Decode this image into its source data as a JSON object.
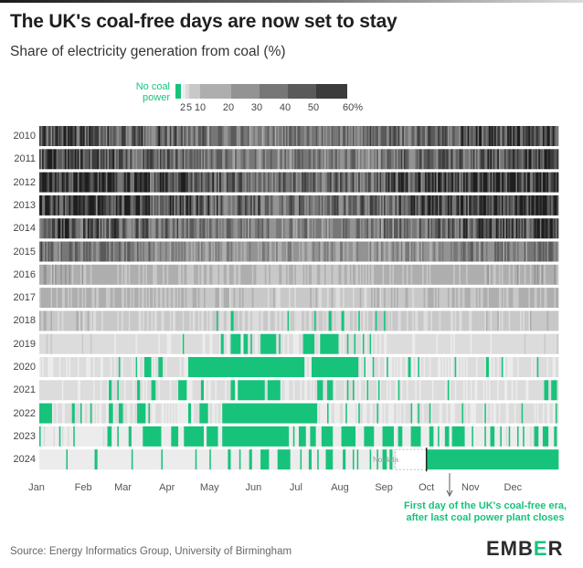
{
  "header": {
    "title": "The UK's coal-free days are now set to stay",
    "subtitle": "Share of electricity generation from coal (%)"
  },
  "legend": {
    "no_coal_label": "No coal power",
    "no_coal_color": "#17c37b",
    "tick_labels": [
      "2",
      "5",
      "10",
      "20",
      "30",
      "40",
      "50",
      "60%"
    ],
    "bins": [
      0,
      2,
      5,
      10,
      20,
      30,
      40,
      50,
      60
    ],
    "bin_colors": [
      "#ececec",
      "#dcdcdc",
      "#c8c8c8",
      "#aeaeae",
      "#939393",
      "#777777",
      "#5a5a5a",
      "#3c3c3c",
      "#1e1e1e"
    ]
  },
  "annotation": {
    "no_data": "No data",
    "first_coal_free": "First day of the UK's coal-free era, after last coal power plant closes"
  },
  "footer": {
    "source": "Source: Energy Informatics Group, University of Birmingham",
    "logo_text_a": "EMB",
    "logo_text_b": "E",
    "logo_text_c": "R"
  },
  "chart_data": {
    "type": "heatmap",
    "title": "The UK's coal-free days are now set to stay",
    "subtitle": "Share of electricity generation from coal (%)",
    "x_axis": "day of year",
    "x_tick_labels": [
      "Jan",
      "Feb",
      "Mar",
      "Apr",
      "May",
      "Jun",
      "Jul",
      "Aug",
      "Sep",
      "Oct",
      "Nov",
      "Dec"
    ],
    "y_tick_labels": [
      "2010",
      "2011",
      "2012",
      "2013",
      "2014",
      "2015",
      "2016",
      "2017",
      "2018",
      "2019",
      "2020",
      "2021",
      "2022",
      "2023",
      "2024"
    ],
    "value_range": [
      0,
      60
    ],
    "value_unit": "%",
    "typical_coal_share_by_year": [
      {
        "year": "2010",
        "typical_pct": 40
      },
      {
        "year": "2011",
        "typical_pct": 38
      },
      {
        "year": "2012",
        "typical_pct": 48
      },
      {
        "year": "2013",
        "typical_pct": 46
      },
      {
        "year": "2014",
        "typical_pct": 38
      },
      {
        "year": "2015",
        "typical_pct": 28
      },
      {
        "year": "2016",
        "typical_pct": 12
      },
      {
        "year": "2017",
        "typical_pct": 9
      },
      {
        "year": "2018",
        "typical_pct": 6
      },
      {
        "year": "2019",
        "typical_pct": 3
      },
      {
        "year": "2020",
        "typical_pct": 2
      },
      {
        "year": "2021",
        "typical_pct": 2.5
      },
      {
        "year": "2022",
        "typical_pct": 2
      },
      {
        "year": "2023",
        "typical_pct": 1.2
      },
      {
        "year": "2024",
        "typical_pct": 0.5
      }
    ],
    "coal_free_periods": {
      "2018": [
        [
          126,
          126
        ],
        [
          136,
          137
        ],
        [
          176,
          176
        ],
        [
          195,
          195
        ],
        [
          205,
          206
        ],
        [
          214,
          215
        ],
        [
          226,
          226
        ],
        [
          238,
          238
        ],
        [
          244,
          244
        ]
      ],
      "2019": [
        [
          102,
          102
        ],
        [
          129,
          130
        ],
        [
          136,
          142
        ],
        [
          145,
          147
        ],
        [
          150,
          150
        ],
        [
          157,
          167
        ],
        [
          170,
          170
        ],
        [
          187,
          194
        ],
        [
          199,
          211
        ],
        [
          218,
          218
        ],
        [
          223,
          223
        ],
        [
          229,
          229
        ],
        [
          234,
          234
        ]
      ],
      "2020": [
        [
          57,
          57
        ],
        [
          69,
          69
        ],
        [
          75,
          79
        ],
        [
          85,
          87
        ],
        [
          106,
          187
        ],
        [
          193,
          225
        ],
        [
          230,
          230
        ],
        [
          236,
          236
        ],
        [
          246,
          246
        ],
        [
          261,
          262
        ],
        [
          268,
          268
        ],
        [
          294,
          294
        ],
        [
          316,
          317
        ],
        [
          327,
          327
        ],
        [
          352,
          352
        ]
      ],
      "2021": [
        [
          50,
          51
        ],
        [
          56,
          56
        ],
        [
          70,
          71
        ],
        [
          80,
          82
        ],
        [
          99,
          104
        ],
        [
          115,
          116
        ],
        [
          136,
          138
        ],
        [
          141,
          159
        ],
        [
          162,
          170
        ],
        [
          197,
          200
        ],
        [
          204,
          207
        ],
        [
          218,
          218
        ],
        [
          222,
          222
        ],
        [
          232,
          232
        ],
        [
          240,
          240
        ],
        [
          254,
          254
        ],
        [
          289,
          289
        ],
        [
          357,
          359
        ],
        [
          362,
          365
        ]
      ],
      "2022": [
        [
          1,
          9
        ],
        [
          24,
          25
        ],
        [
          30,
          30
        ],
        [
          37,
          37
        ],
        [
          50,
          52
        ],
        [
          57,
          59
        ],
        [
          70,
          75
        ],
        [
          78,
          78
        ],
        [
          106,
          107
        ],
        [
          114,
          119
        ],
        [
          130,
          196
        ],
        [
          204,
          204
        ],
        [
          217,
          217
        ],
        [
          226,
          226
        ],
        [
          239,
          239
        ],
        [
          263,
          263
        ],
        [
          268,
          268
        ],
        [
          276,
          276
        ],
        [
          299,
          299
        ],
        [
          315,
          315
        ],
        [
          341,
          341
        ],
        [
          365,
          365
        ]
      ],
      "2023": [
        [
          1,
          1
        ],
        [
          15,
          15
        ],
        [
          25,
          25
        ],
        [
          49,
          51
        ],
        [
          56,
          56
        ],
        [
          64,
          65
        ],
        [
          74,
          86
        ],
        [
          94,
          98
        ],
        [
          103,
          116
        ],
        [
          119,
          126
        ],
        [
          130,
          176
        ],
        [
          180,
          180
        ],
        [
          184,
          188
        ],
        [
          192,
          195
        ],
        [
          200,
          207
        ],
        [
          214,
          223
        ],
        [
          230,
          236
        ],
        [
          243,
          250
        ],
        [
          254,
          256
        ],
        [
          263,
          269
        ],
        [
          276,
          278
        ],
        [
          282,
          282
        ],
        [
          287,
          289
        ],
        [
          292,
          300
        ],
        [
          306,
          306
        ],
        [
          315,
          315
        ],
        [
          319,
          321
        ],
        [
          326,
          326
        ],
        [
          332,
          332
        ],
        [
          338,
          338
        ],
        [
          342,
          342
        ],
        [
          350,
          352
        ],
        [
          356,
          359
        ],
        [
          364,
          365
        ]
      ],
      "2024": [
        [
          20,
          20
        ],
        [
          40,
          41
        ],
        [
          66,
          66
        ],
        [
          87,
          87
        ],
        [
          111,
          111
        ],
        [
          121,
          121
        ],
        [
          134,
          135
        ],
        [
          142,
          142
        ],
        [
          149,
          150
        ],
        [
          157,
          162
        ],
        [
          169,
          177
        ],
        [
          185,
          185
        ],
        [
          191,
          192
        ],
        [
          197,
          197
        ],
        [
          203,
          207
        ],
        [
          215,
          216
        ],
        [
          222,
          222
        ],
        [
          225,
          225
        ],
        [
          234,
          234
        ],
        [
          239,
          239
        ],
        [
          243,
          245
        ],
        [
          248,
          249
        ],
        [
          274,
          366
        ]
      ]
    },
    "no_data_2024": [
      252,
      273
    ]
  }
}
